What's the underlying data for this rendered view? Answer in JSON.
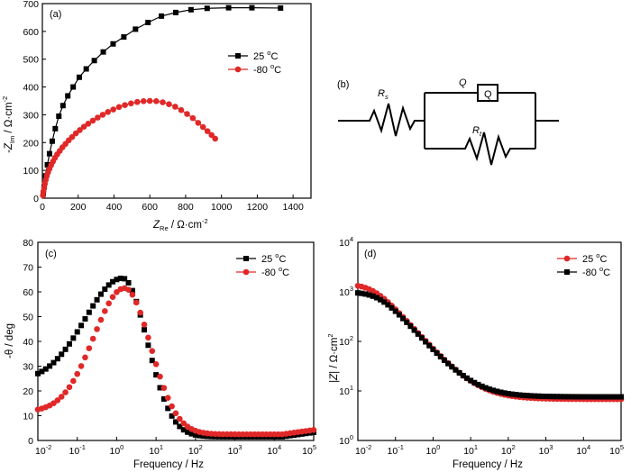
{
  "colors": {
    "black": "#000000",
    "red": "#e02828"
  },
  "chart_data": [
    {
      "panel": "(a)",
      "type": "scatter",
      "mode": "line+markers",
      "xlabel_main": "Z",
      "xlabel_sub": "Re",
      "xlabel_rest": " / Ω·cm",
      "xlabel_sup": "-2",
      "ylabel_main": "-Z",
      "ylabel_sub": "Im",
      "ylabel_rest": " / Ω·cm",
      "ylabel_sup": "-2",
      "xlim": [
        0,
        1500
      ],
      "ylim": [
        0,
        700
      ],
      "xticks": [
        0,
        200,
        400,
        600,
        800,
        1000,
        1200,
        1400
      ],
      "yticks": [
        0,
        100,
        200,
        300,
        400,
        500,
        600,
        700
      ],
      "series": [
        {
          "name": "25 °C",
          "legend_main": "25 ",
          "legend_sup": "o",
          "legend_rest": "C",
          "color": "#000000",
          "marker": "square",
          "x": [
            5,
            10,
            18,
            28,
            40,
            55,
            72,
            92,
            115,
            142,
            172,
            206,
            245,
            290,
            340,
            395,
            455,
            520,
            590,
            665,
            745,
            830,
            920,
            1040,
            1170,
            1330
          ],
          "y": [
            15,
            40,
            80,
            120,
            160,
            205,
            250,
            295,
            333,
            368,
            400,
            435,
            465,
            495,
            526,
            555,
            580,
            608,
            632,
            655,
            668,
            678,
            683,
            685,
            685,
            684
          ]
        },
        {
          "name": "-80 °C",
          "legend_main": "-80 ",
          "legend_sup": "o",
          "legend_rest": "C",
          "color": "#e02828",
          "marker": "circle",
          "x": [
            3,
            6,
            10,
            14,
            19,
            25,
            32,
            40,
            49,
            59,
            70,
            83,
            97,
            112,
            129,
            147,
            166,
            187,
            209,
            232,
            256,
            282,
            309,
            337,
            366,
            396,
            428,
            461,
            495,
            530,
            565,
            600,
            636,
            672,
            707,
            742,
            775,
            808,
            840,
            870,
            897,
            922,
            945,
            965
          ],
          "y": [
            10,
            24,
            38,
            52,
            66,
            80,
            93,
            106,
            119,
            132,
            145,
            158,
            170,
            183,
            195,
            208,
            220,
            233,
            245,
            257,
            268,
            279,
            290,
            300,
            310,
            319,
            328,
            335,
            341,
            346,
            349,
            350,
            349,
            345,
            338,
            329,
            317,
            303,
            288,
            271,
            256,
            241,
            227,
            214
          ]
        }
      ],
      "legend_loc": "right"
    },
    {
      "panel": "(c)",
      "type": "scatter",
      "mode": "markers",
      "xlabel": "Frequency / Hz",
      "ylabel_main": "-θ / deg",
      "xscale": "log",
      "xlim": [
        0.01,
        100000
      ],
      "ylim": [
        0,
        80
      ],
      "xticks_exp": [
        -2,
        -1,
        0,
        1,
        2,
        3,
        4,
        5
      ],
      "yticks": [
        0,
        10,
        20,
        30,
        40,
        50,
        60,
        70,
        80
      ],
      "series": [
        {
          "name": "25 °C",
          "legend_main": "25 ",
          "legend_sup": "o",
          "legend_rest": "C",
          "color": "#000000",
          "marker": "square",
          "peak": 65.5,
          "peak_logf": 0.15,
          "low": 27,
          "floor": 1.5,
          "sigma_left": 0.95,
          "sigma_right": 0.62
        },
        {
          "name": "-80 °C",
          "legend_main": "-80 ",
          "legend_sup": "o",
          "legend_rest": "C",
          "color": "#e02828",
          "marker": "circle",
          "peak": 61.5,
          "peak_logf": 0.2,
          "low": 12.5,
          "floor": 2.5,
          "sigma_left": 0.78,
          "sigma_right": 0.66
        }
      ],
      "legend_loc": "top-right"
    },
    {
      "panel": "(d)",
      "type": "scatter",
      "mode": "markers",
      "xlabel": "Frequency / Hz",
      "ylabel_main": "|Z|",
      "ylabel_rest": " / Ω·cm",
      "ylabel_sup": "2",
      "xscale": "log",
      "yscale": "log",
      "xlim": [
        0.01,
        100000
      ],
      "ylim": [
        1,
        10000
      ],
      "xticks_exp": [
        -2,
        -1,
        0,
        1,
        2,
        3,
        4,
        5
      ],
      "yticks_exp": [
        0,
        1,
        2,
        3,
        4
      ],
      "series": [
        {
          "name": "25 °C",
          "legend_main": "25 ",
          "legend_sup": "o",
          "legend_rest": "C",
          "color": "#e02828",
          "marker": "circle",
          "z_low": 1450,
          "z_high": 6.8
        },
        {
          "name": "-80 °C",
          "legend_main": "-80 ",
          "legend_sup": "o",
          "legend_rest": "C",
          "color": "#000000",
          "marker": "square",
          "z_low": 1000,
          "z_high": 7.6
        }
      ],
      "legend_loc": "top-right"
    }
  ],
  "circuit": {
    "panel": "(b)",
    "rs_main": "R",
    "rs_sub": "s",
    "q_label": "Q",
    "q_box": "Q",
    "rt_main": "R",
    "rt_sub": "t"
  }
}
